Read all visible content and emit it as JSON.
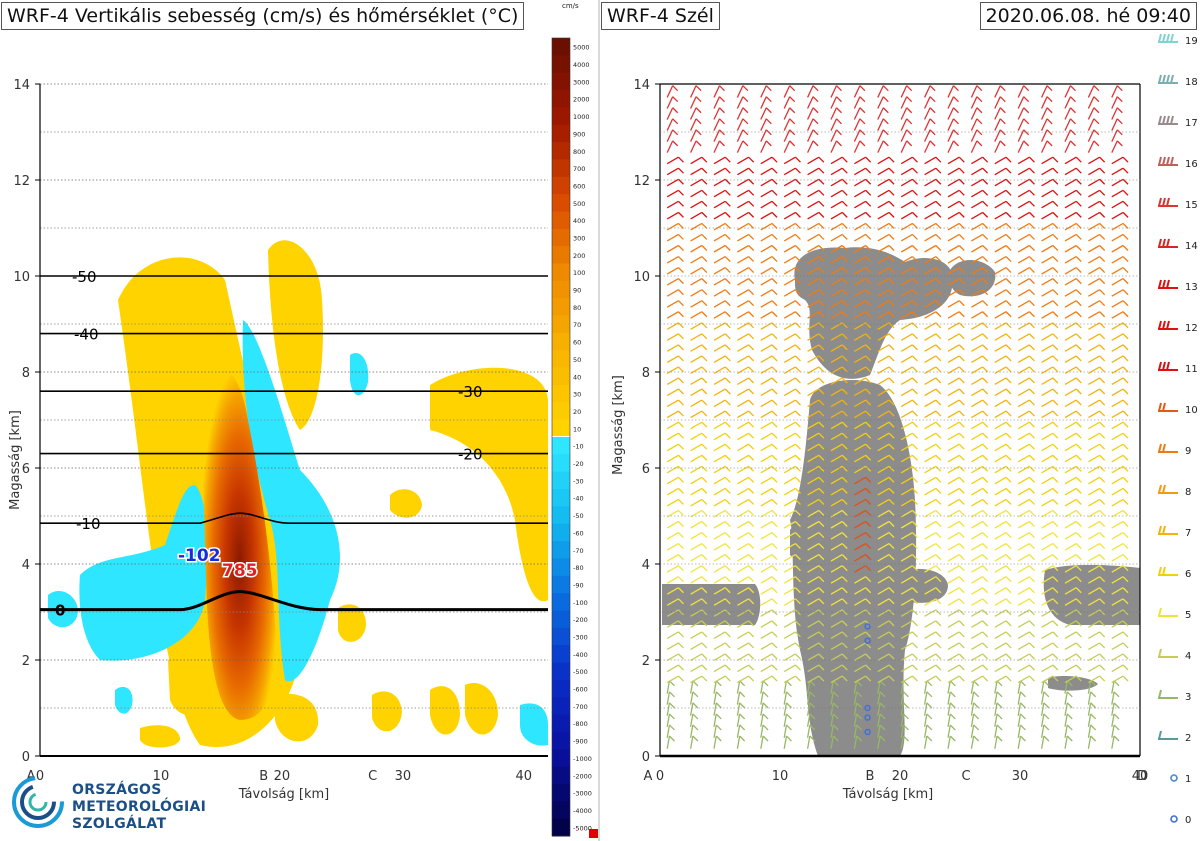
{
  "header": {
    "left_title": "WRF-4 Vertikális sebesség (cm/s) és hőmérséklet (°C)",
    "right_title": "WRF-4 Szél",
    "datetime": "2020.06.08. hé 09:40"
  },
  "colorbar_unit": "cm/s",
  "logo": {
    "line1": "ORSZÁGOS",
    "line2": "METEOROLÓGIAI",
    "line3": "SZOLGÁLAT"
  },
  "chart_data": [
    {
      "type": "heatmap",
      "title": "WRF-4 Vertikális sebesség (cm/s) és hőmérséklet (°C)",
      "xlabel": "Távolság [km]",
      "ylabel": "Magasság [km]",
      "xlim": [
        0,
        42
      ],
      "ylim": [
        0,
        14
      ],
      "xticks": [
        0,
        10,
        20,
        30,
        40
      ],
      "yticks": [
        0,
        2,
        4,
        6,
        8,
        10,
        12,
        14
      ],
      "section_points": [
        {
          "label": "A",
          "x": 0
        },
        {
          "label": "B",
          "x": 18.5
        },
        {
          "label": "C",
          "x": 27.5
        }
      ],
      "temperature_isotherms": [
        {
          "label": "-50",
          "height": 10.0
        },
        {
          "label": "-40",
          "height": 8.8
        },
        {
          "label": "-30",
          "height": 7.6
        },
        {
          "label": "-20",
          "height": 6.3
        },
        {
          "label": "-10",
          "height": 4.85
        },
        {
          "label": "0",
          "height": 3.05
        }
      ],
      "extrema": [
        {
          "label": "-102",
          "x": 13.5,
          "height": 4.2,
          "kind": "min"
        },
        {
          "label": "785",
          "x": 17,
          "height": 3.9,
          "kind": "max"
        }
      ],
      "colorbar_positive": [
        "5000",
        "4000",
        "3000",
        "2000",
        "1000",
        "900",
        "800",
        "700",
        "600",
        "500",
        "400",
        "300",
        "200",
        "100",
        "90",
        "80",
        "70",
        "60",
        "50",
        "40",
        "30",
        "20",
        "10"
      ],
      "colorbar_negative": [
        "-10",
        "-20",
        "-30",
        "-40",
        "-50",
        "-60",
        "-70",
        "-80",
        "-90",
        "-100",
        "-200",
        "-300",
        "-400",
        "-500",
        "-600",
        "-700",
        "-800",
        "-900",
        "-1000",
        "-2000",
        "-3000",
        "-4000",
        "-5000"
      ],
      "colors": {
        "updraft_low": "#ffd300",
        "updraft_high": "#6b0f00",
        "downdraft_low": "#2ee6ff",
        "downdraft_high": "#02024a"
      }
    },
    {
      "type": "heatmap",
      "title": "WRF-4 Szél",
      "xlabel": "Távolság [km]",
      "ylabel": "Magasság [km]",
      "xlim": [
        0,
        40
      ],
      "ylim": [
        0,
        14
      ],
      "xticks": [
        0,
        10,
        20,
        30,
        40
      ],
      "yticks": [
        0,
        2,
        4,
        6,
        8,
        10,
        12,
        14
      ],
      "section_points": [
        {
          "label": "A",
          "x": 0
        },
        {
          "label": "B",
          "x": 17.5
        },
        {
          "label": "C",
          "x": 25.5
        },
        {
          "label": "D",
          "x": 40
        }
      ],
      "wind_speed_legend": [
        "19",
        "18",
        "17",
        "16",
        "15",
        "14",
        "13",
        "12",
        "11",
        "10",
        "9",
        "8",
        "7",
        "6",
        "5",
        "4",
        "3",
        "2",
        "1",
        "0"
      ],
      "wind_legend_colors": [
        "#7fd4cf",
        "#7aaeb0",
        "#9a8b8b",
        "#c0605a",
        "#d33",
        "#d22",
        "#d11",
        "#d11",
        "#d11",
        "#e05a1a",
        "#f07b12",
        "#f39a10",
        "#f3b30d",
        "#f4cf0b",
        "#f1e33a",
        "#c8cc55",
        "#98b766",
        "#5b9a9a",
        "#4a86c8",
        "#3f6fd8"
      ],
      "cloud_regions_note": "grey shading"
    }
  ]
}
